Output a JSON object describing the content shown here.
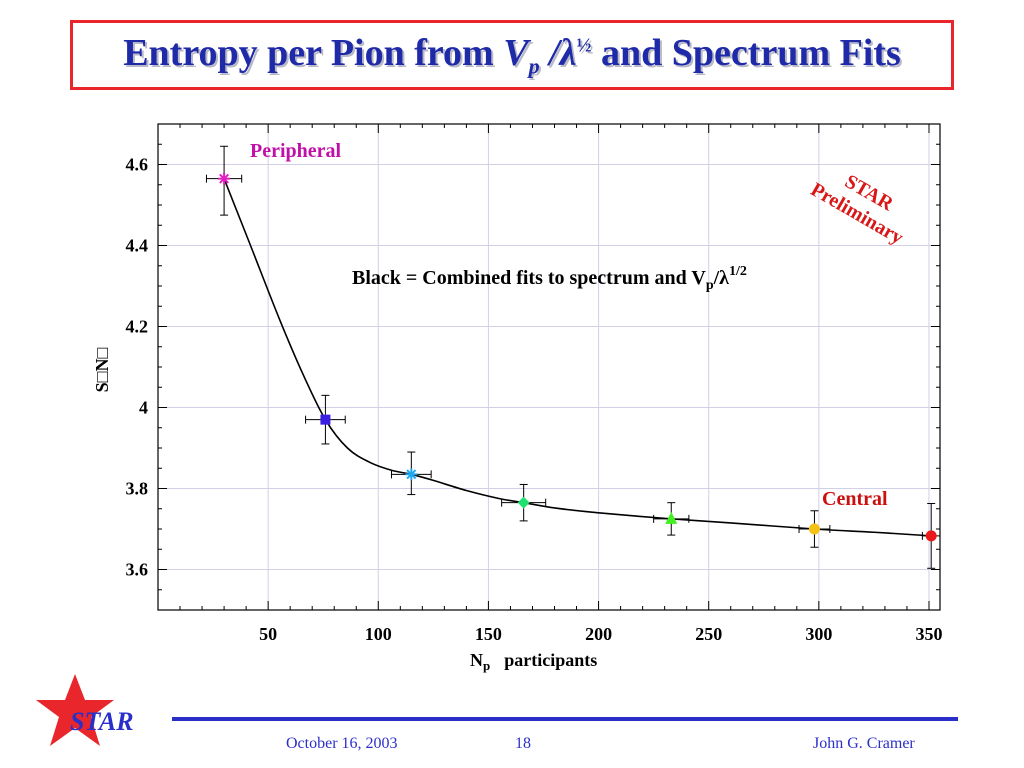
{
  "header": {
    "title_prefix": "Entropy per Pion from ",
    "title_var": "V",
    "title_sub": "p",
    "title_mid": " /λ",
    "title_sup": "½",
    "title_suffix": " and Spectrum Fits"
  },
  "chart_data": {
    "type": "scatter",
    "xlabel": "N",
    "xlabel_sub": "p",
    "xlabel_suffix": "participants",
    "ylabel": "S□N□",
    "xlim": [
      0,
      355
    ],
    "ylim": [
      3.5,
      4.7
    ],
    "x_ticks": [
      50,
      100,
      150,
      200,
      250,
      300,
      350
    ],
    "x_tick_labels": [
      "50",
      "100",
      "150",
      "200",
      "250",
      "300",
      "350"
    ],
    "y_ticks": [
      3.6,
      3.8,
      4.0,
      4.2,
      4.4,
      4.6
    ],
    "y_tick_labels": [
      "3.6",
      "3.8",
      "4",
      "4.2",
      "4.4",
      "4.6"
    ],
    "grid": true,
    "points": [
      {
        "x": 30,
        "y": 4.565,
        "xerr": 8,
        "yerr_up": 0.08,
        "yerr_down": 0.09,
        "marker": "star",
        "color": "#e020c0"
      },
      {
        "x": 76,
        "y": 3.97,
        "xerr": 9,
        "yerr_up": 0.06,
        "yerr_down": 0.06,
        "marker": "square",
        "color": "#3a1fe0"
      },
      {
        "x": 115,
        "y": 3.835,
        "xerr": 9,
        "yerr_up": 0.055,
        "yerr_down": 0.05,
        "marker": "star",
        "color": "#1ea8f0"
      },
      {
        "x": 166,
        "y": 3.765,
        "xerr": 10,
        "yerr_up": 0.045,
        "yerr_down": 0.045,
        "marker": "diamond",
        "color": "#20e070"
      },
      {
        "x": 233,
        "y": 3.725,
        "xerr": 8,
        "yerr_up": 0.04,
        "yerr_down": 0.04,
        "marker": "triangle",
        "color": "#40f020"
      },
      {
        "x": 298,
        "y": 3.7,
        "xerr": 7,
        "yerr_up": 0.045,
        "yerr_down": 0.045,
        "marker": "circle",
        "color": "#f4c214"
      },
      {
        "x": 351,
        "y": 3.683,
        "xerr": 4,
        "yerr_up": 0.08,
        "yerr_down": 0.08,
        "marker": "circle",
        "color": "#e81a1a"
      }
    ],
    "fit_curve": {
      "color": "#000000",
      "x": [
        30,
        42,
        55,
        66,
        76,
        86,
        96,
        106,
        115,
        125,
        140,
        155,
        166,
        180,
        200,
        233,
        260,
        298,
        325,
        351
      ],
      "y": [
        4.565,
        4.4,
        4.22,
        4.08,
        3.97,
        3.9,
        3.865,
        3.845,
        3.835,
        3.82,
        3.795,
        3.775,
        3.765,
        3.752,
        3.74,
        3.725,
        3.715,
        3.7,
        3.692,
        3.683
      ]
    },
    "annotations": {
      "peripheral": "Peripheral",
      "central": "Central",
      "star_line1": "STAR",
      "star_line2": "Preliminary",
      "legend_prefix": "Black = Combined fits to spectrum and V",
      "legend_sub": "p",
      "legend_mid": "/λ",
      "legend_sup": "1/2"
    },
    "colors": {
      "peripheral": "#c010a8",
      "central": "#cc1010",
      "star_preliminary": "#d81818",
      "grid": "#d0d0e8"
    }
  },
  "footer": {
    "logo_text": "STAR",
    "date": "October 16, 2003",
    "page": "18",
    "author": "John G. Cramer",
    "line_color": "#2b2fc9",
    "logo_star_color": "#e8262b"
  }
}
